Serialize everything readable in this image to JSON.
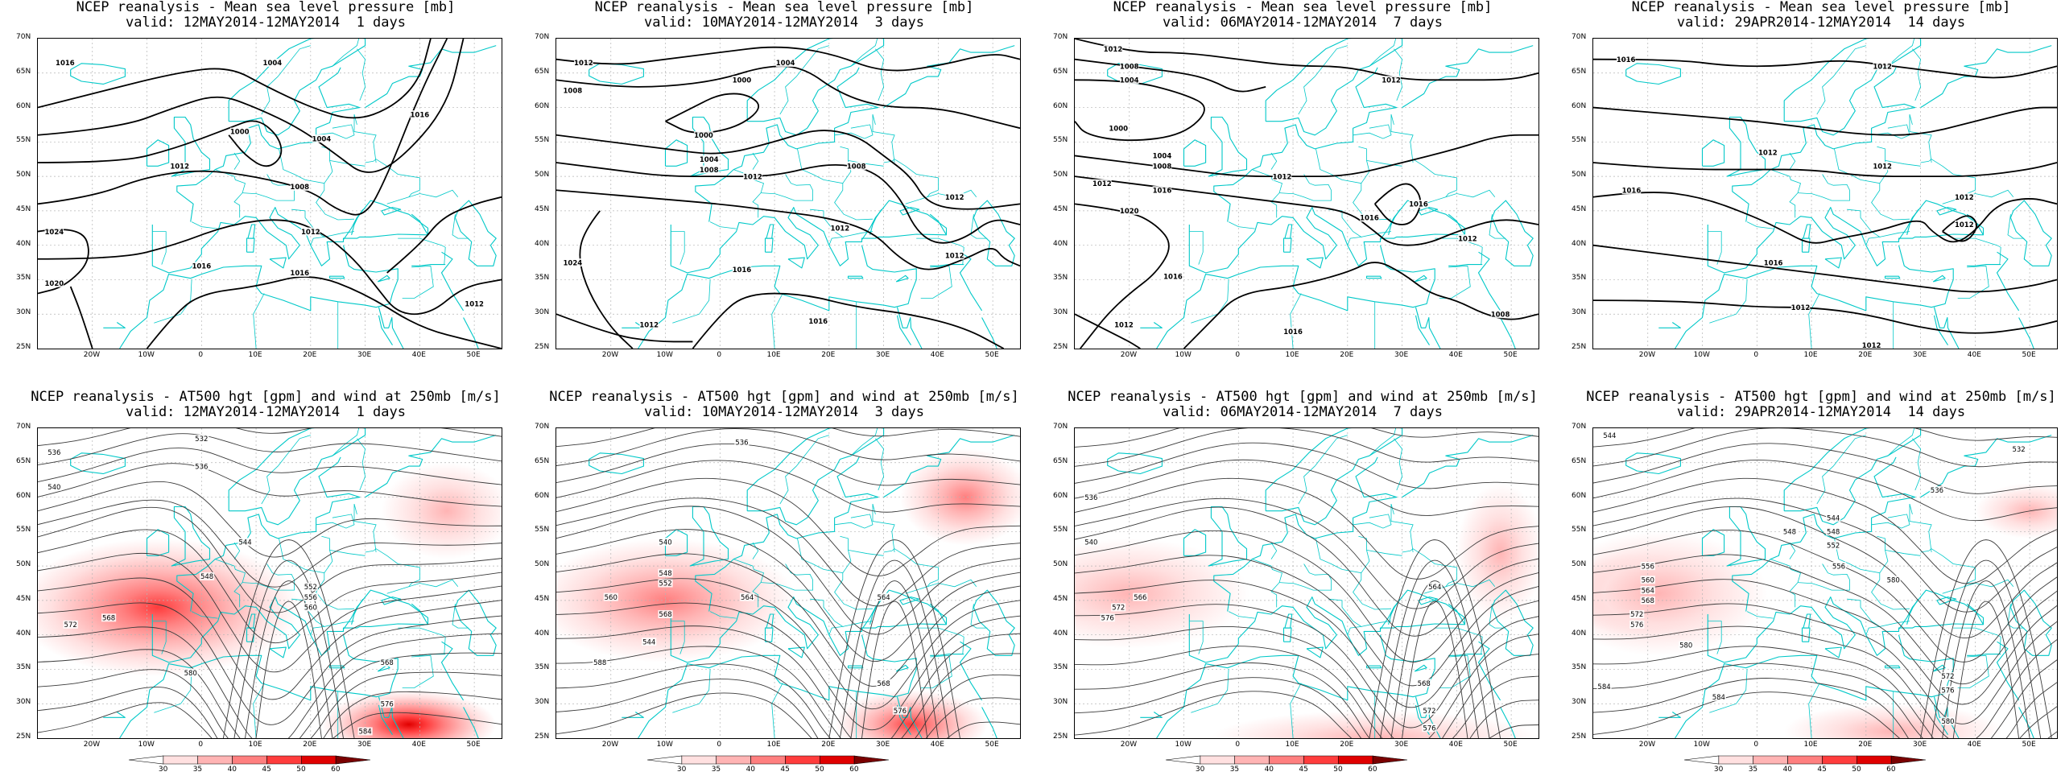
{
  "colors": {
    "coast": "#00c8c8",
    "isobar": "#000000",
    "height": "#3a3a3a",
    "grid": "#b4b4b4",
    "wind": [
      "#ffe0e0",
      "#ffb4b4",
      "#ff7f7f",
      "#ff3c3c",
      "#e00000",
      "#7a0000"
    ]
  },
  "axes": {
    "lat_labels": [
      "70N",
      "65N",
      "60N",
      "55N",
      "50N",
      "45N",
      "40N",
      "35N",
      "30N",
      "25N"
    ],
    "lon_labels": [
      "20W",
      "10W",
      "0",
      "10E",
      "20E",
      "30E",
      "40E",
      "50E"
    ],
    "lon_range": [
      -30,
      55
    ],
    "lat_range": [
      25,
      70
    ]
  },
  "colorbar_ticks": [
    "30",
    "35",
    "40",
    "45",
    "50",
    "60"
  ],
  "panels": [
    {
      "kind": "mslp",
      "title_line1": "NCEP reanalysis - Mean sea level pressure [mb]",
      "title_line2": "valid: 12MAY2014-12MAY2014  1 days",
      "contour_labels": [
        {
          "text": "1016",
          "lon": -25,
          "lat": 66.5
        },
        {
          "text": "1004",
          "lon": 13,
          "lat": 66.5
        },
        {
          "text": "1000",
          "lon": 7,
          "lat": 56.5
        },
        {
          "text": "1004",
          "lon": 22,
          "lat": 55.5
        },
        {
          "text": "1016",
          "lon": 40,
          "lat": 59
        },
        {
          "text": "1012",
          "lon": -4,
          "lat": 51.5
        },
        {
          "text": "1008",
          "lon": 18,
          "lat": 48.5
        },
        {
          "text": "1012",
          "lon": 20,
          "lat": 42
        },
        {
          "text": "1024",
          "lon": -27,
          "lat": 42
        },
        {
          "text": "1016",
          "lon": 0,
          "lat": 37
        },
        {
          "text": "1016",
          "lon": 18,
          "lat": 36
        },
        {
          "text": "1020",
          "lon": -27,
          "lat": 34.5
        },
        {
          "text": "1012",
          "lon": 50,
          "lat": 31.5
        }
      ]
    },
    {
      "kind": "mslp",
      "title_line1": "NCEP reanalysis - Mean sea level pressure [mb]",
      "title_line2": "valid: 10MAY2014-12MAY2014  3 days",
      "contour_labels": [
        {
          "text": "1012",
          "lon": -25,
          "lat": 66.5
        },
        {
          "text": "1008",
          "lon": -27,
          "lat": 62.5
        },
        {
          "text": "1000",
          "lon": 4,
          "lat": 64
        },
        {
          "text": "1004",
          "lon": 12,
          "lat": 66.5
        },
        {
          "text": "1000",
          "lon": -3,
          "lat": 56
        },
        {
          "text": "1004",
          "lon": -2,
          "lat": 52.5
        },
        {
          "text": "1008",
          "lon": -2,
          "lat": 51
        },
        {
          "text": "1012",
          "lon": 6,
          "lat": 50
        },
        {
          "text": "1008",
          "lon": 25,
          "lat": 51.5
        },
        {
          "text": "1012",
          "lon": 43,
          "lat": 47
        },
        {
          "text": "1012",
          "lon": 22,
          "lat": 42.5
        },
        {
          "text": "1012",
          "lon": 43,
          "lat": 38.5
        },
        {
          "text": "1024",
          "lon": -27,
          "lat": 37.5
        },
        {
          "text": "1016",
          "lon": 4,
          "lat": 36.5
        },
        {
          "text": "1012",
          "lon": -13,
          "lat": 28.5
        },
        {
          "text": "1016",
          "lon": 18,
          "lat": 29
        }
      ]
    },
    {
      "kind": "mslp",
      "title_line1": "NCEP reanalysis - Mean sea level pressure [mb]",
      "title_line2": "valid: 06MAY2014-12MAY2014  7 days",
      "contour_labels": [
        {
          "text": "1012",
          "lon": -23,
          "lat": 68.5
        },
        {
          "text": "1008",
          "lon": -20,
          "lat": 66
        },
        {
          "text": "1004",
          "lon": -20,
          "lat": 64
        },
        {
          "text": "1012",
          "lon": 28,
          "lat": 64
        },
        {
          "text": "1000",
          "lon": -22,
          "lat": 57
        },
        {
          "text": "1004",
          "lon": -14,
          "lat": 53
        },
        {
          "text": "1008",
          "lon": -14,
          "lat": 51.5
        },
        {
          "text": "1012",
          "lon": -25,
          "lat": 49
        },
        {
          "text": "1016",
          "lon": -14,
          "lat": 48
        },
        {
          "text": "1012",
          "lon": 8,
          "lat": 50
        },
        {
          "text": "1020",
          "lon": -20,
          "lat": 45
        },
        {
          "text": "1016",
          "lon": 24,
          "lat": 44
        },
        {
          "text": "1016",
          "lon": 33,
          "lat": 46
        },
        {
          "text": "1012",
          "lon": 42,
          "lat": 41
        },
        {
          "text": "1016",
          "lon": -12,
          "lat": 35.5
        },
        {
          "text": "1012",
          "lon": -21,
          "lat": 28.5
        },
        {
          "text": "1016",
          "lon": 10,
          "lat": 27.5
        },
        {
          "text": "1008",
          "lon": 48,
          "lat": 30
        }
      ]
    },
    {
      "kind": "mslp",
      "title_line1": "NCEP reanalysis - Mean sea level pressure [mb]",
      "title_line2": "valid: 29APR2014-12MAY2014  14 days",
      "contour_labels": [
        {
          "text": "1016",
          "lon": -24,
          "lat": 67
        },
        {
          "text": "1012",
          "lon": 23,
          "lat": 66
        },
        {
          "text": "1012",
          "lon": 2,
          "lat": 53.5
        },
        {
          "text": "1012",
          "lon": 23,
          "lat": 51.5
        },
        {
          "text": "1016",
          "lon": -23,
          "lat": 48
        },
        {
          "text": "1012",
          "lon": 38,
          "lat": 47
        },
        {
          "text": "1012",
          "lon": 38,
          "lat": 43
        },
        {
          "text": "1016",
          "lon": 3,
          "lat": 37.5
        },
        {
          "text": "1012",
          "lon": 8,
          "lat": 31
        },
        {
          "text": "1012",
          "lon": 21,
          "lat": 25.5
        }
      ]
    },
    {
      "kind": "hgt",
      "title_line1": "NCEP reanalysis - AT500 hgt [gpm] and wind at 250mb [m/s]",
      "title_line2": "valid: 12MAY2014-12MAY2014  1 days",
      "jets": [
        {
          "lon": -12,
          "lat": 44,
          "rx": 14,
          "ry": 6,
          "level": 5
        },
        {
          "lon": -8,
          "lat": 44,
          "rx": 26,
          "ry": 10,
          "level": 3
        },
        {
          "lon": 45,
          "lat": 58,
          "rx": 12,
          "ry": 7,
          "level": 1
        },
        {
          "lon": 38,
          "lat": 27,
          "rx": 16,
          "ry": 5,
          "level": 4
        }
      ],
      "contour_labels": [
        {
          "text": "532",
          "lon": 0,
          "lat": 68.5
        },
        {
          "text": "536",
          "lon": -27,
          "lat": 66.5
        },
        {
          "text": "536",
          "lon": 0,
          "lat": 64.5
        },
        {
          "text": "540",
          "lon": -27,
          "lat": 61.5
        },
        {
          "text": "544",
          "lon": 8,
          "lat": 53.5
        },
        {
          "text": "548",
          "lon": 1,
          "lat": 48.5
        },
        {
          "text": "552",
          "lon": 20,
          "lat": 47
        },
        {
          "text": "556",
          "lon": 20,
          "lat": 45.5
        },
        {
          "text": "560",
          "lon": 20,
          "lat": 44
        },
        {
          "text": "568",
          "lon": -17,
          "lat": 42.5
        },
        {
          "text": "572",
          "lon": -24,
          "lat": 41.5
        },
        {
          "text": "580",
          "lon": -2,
          "lat": 34.5
        },
        {
          "text": "568",
          "lon": 34,
          "lat": 36
        },
        {
          "text": "576",
          "lon": 34,
          "lat": 30
        },
        {
          "text": "584",
          "lon": 30,
          "lat": 26
        }
      ]
    },
    {
      "kind": "hgt",
      "title_line1": "NCEP reanalysis - AT500 hgt [gpm] and wind at 250mb [m/s]",
      "title_line2": "valid: 10MAY2014-12MAY2014  3 days",
      "jets": [
        {
          "lon": -13,
          "lat": 45,
          "rx": 12,
          "ry": 5,
          "level": 4
        },
        {
          "lon": -10,
          "lat": 45,
          "rx": 24,
          "ry": 9,
          "level": 2
        },
        {
          "lon": 45,
          "lat": 60,
          "rx": 12,
          "ry": 7,
          "level": 2
        },
        {
          "lon": 35,
          "lat": 27,
          "rx": 14,
          "ry": 5,
          "level": 3
        }
      ],
      "contour_labels": [
        {
          "text": "536",
          "lon": 4,
          "lat": 68
        },
        {
          "text": "540",
          "lon": -10,
          "lat": 53.5
        },
        {
          "text": "548",
          "lon": -10,
          "lat": 49
        },
        {
          "text": "552",
          "lon": -10,
          "lat": 47.5
        },
        {
          "text": "560",
          "lon": -20,
          "lat": 45.5
        },
        {
          "text": "564",
          "lon": 5,
          "lat": 45.5
        },
        {
          "text": "564",
          "lon": 30,
          "lat": 45.5
        },
        {
          "text": "568",
          "lon": -10,
          "lat": 43
        },
        {
          "text": "544",
          "lon": -13,
          "lat": 39
        },
        {
          "text": "588",
          "lon": -22,
          "lat": 36
        },
        {
          "text": "568",
          "lon": 30,
          "lat": 33
        },
        {
          "text": "576",
          "lon": 33,
          "lat": 29
        }
      ]
    },
    {
      "kind": "hgt",
      "title_line1": "NCEP reanalysis - AT500 hgt [gpm] and wind at 250mb [m/s]",
      "title_line2": "valid: 06MAY2014-12MAY2014  7 days",
      "jets": [
        {
          "lon": -28,
          "lat": 46,
          "rx": 8,
          "ry": 4,
          "level": 3
        },
        {
          "lon": -20,
          "lat": 46,
          "rx": 22,
          "ry": 8,
          "level": 1
        },
        {
          "lon": 48,
          "lat": 52,
          "rx": 8,
          "ry": 10,
          "level": 1
        },
        {
          "lon": 25,
          "lat": 25,
          "rx": 30,
          "ry": 4,
          "level": 1
        }
      ],
      "contour_labels": [
        {
          "text": "536",
          "lon": -27,
          "lat": 60
        },
        {
          "text": "540",
          "lon": -27,
          "lat": 53.5
        },
        {
          "text": "566",
          "lon": -18,
          "lat": 45.5
        },
        {
          "text": "572",
          "lon": -22,
          "lat": 44
        },
        {
          "text": "576",
          "lon": -24,
          "lat": 42.5
        },
        {
          "text": "564",
          "lon": 36,
          "lat": 47
        },
        {
          "text": "568",
          "lon": 34,
          "lat": 33
        },
        {
          "text": "572",
          "lon": 35,
          "lat": 29
        },
        {
          "text": "576",
          "lon": 35,
          "lat": 26.5
        }
      ]
    },
    {
      "kind": "hgt",
      "title_line1": "NCEP reanalysis - AT500 hgt [gpm] and wind at 250mb [m/s]",
      "title_line2": "valid: 29APR2014-12MAY2014  14 days",
      "jets": [
        {
          "lon": -22,
          "lat": 46,
          "rx": 14,
          "ry": 6,
          "level": 2
        },
        {
          "lon": -18,
          "lat": 46,
          "rx": 20,
          "ry": 9,
          "level": 1
        },
        {
          "lon": 50,
          "lat": 58,
          "rx": 10,
          "ry": 4,
          "level": 1
        },
        {
          "lon": 25,
          "lat": 26,
          "rx": 20,
          "ry": 4,
          "level": 1
        }
      ],
      "contour_labels": [
        {
          "text": "544",
          "lon": -27,
          "lat": 69
        },
        {
          "text": "532",
          "lon": 48,
          "lat": 67
        },
        {
          "text": "536",
          "lon": 33,
          "lat": 61
        },
        {
          "text": "548",
          "lon": 6,
          "lat": 55
        },
        {
          "text": "544",
          "lon": 14,
          "lat": 57
        },
        {
          "text": "548",
          "lon": 14,
          "lat": 55
        },
        {
          "text": "552",
          "lon": 14,
          "lat": 53
        },
        {
          "text": "556",
          "lon": -20,
          "lat": 50
        },
        {
          "text": "556",
          "lon": 15,
          "lat": 50
        },
        {
          "text": "560",
          "lon": -20,
          "lat": 48
        },
        {
          "text": "564",
          "lon": -20,
          "lat": 46.5
        },
        {
          "text": "568",
          "lon": -20,
          "lat": 45
        },
        {
          "text": "572",
          "lon": -22,
          "lat": 43
        },
        {
          "text": "576",
          "lon": -22,
          "lat": 41.5
        },
        {
          "text": "580",
          "lon": 25,
          "lat": 48
        },
        {
          "text": "580",
          "lon": -13,
          "lat": 38.5
        },
        {
          "text": "572",
          "lon": 35,
          "lat": 34
        },
        {
          "text": "576",
          "lon": 35,
          "lat": 32
        },
        {
          "text": "584",
          "lon": -28,
          "lat": 32.5
        },
        {
          "text": "584",
          "lon": -7,
          "lat": 31
        },
        {
          "text": "580",
          "lon": 35,
          "lat": 27.5
        }
      ]
    }
  ]
}
